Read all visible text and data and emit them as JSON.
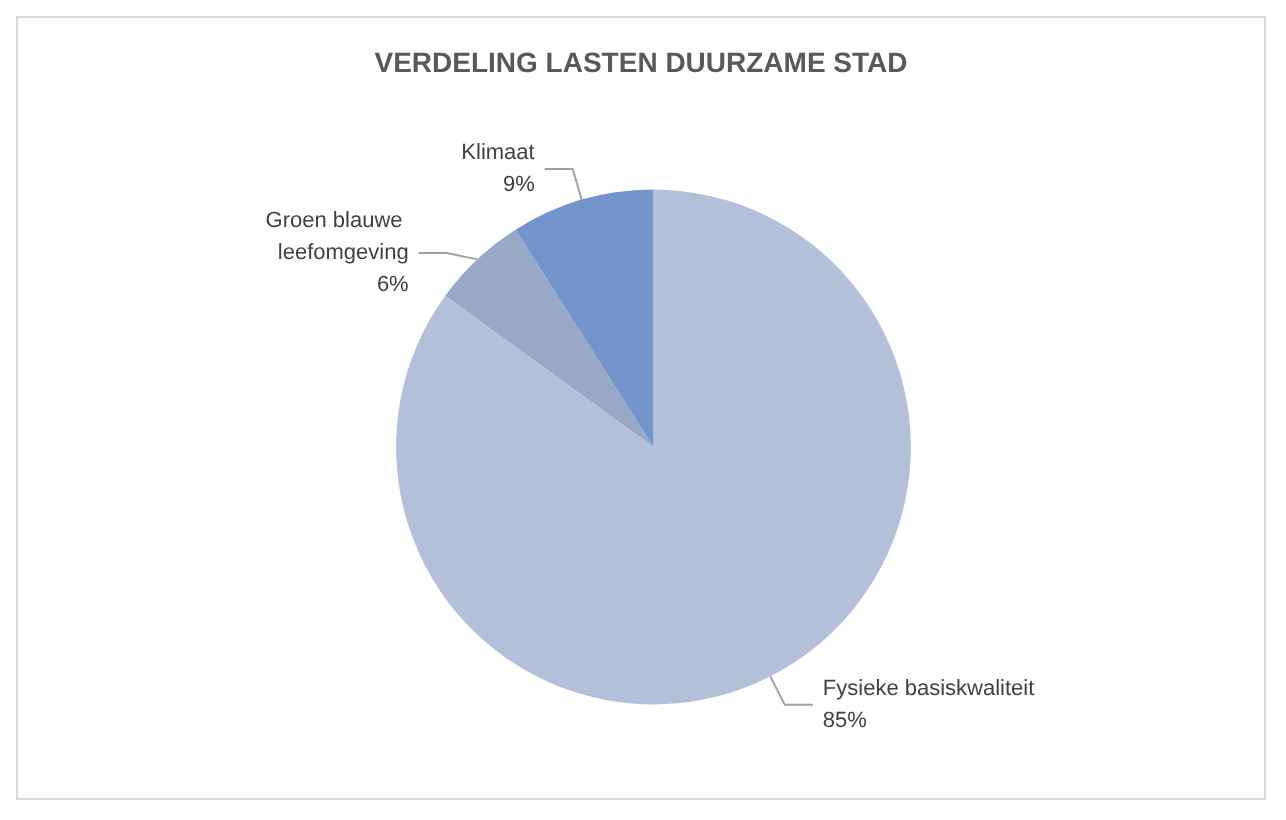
{
  "chart_data": {
    "type": "pie",
    "title": "VERDELING LASTEN DUURZAME STAD",
    "categories": [
      "Fysieke basiskwaliteit",
      "Groen blauwe leefomgeving",
      "Klimaat"
    ],
    "values": [
      85,
      6,
      9
    ],
    "value_labels": [
      "85%",
      "6%",
      "9%"
    ],
    "colors": [
      "#b4c0da",
      "#98a9c8",
      "#7395cc"
    ],
    "legend": false
  }
}
